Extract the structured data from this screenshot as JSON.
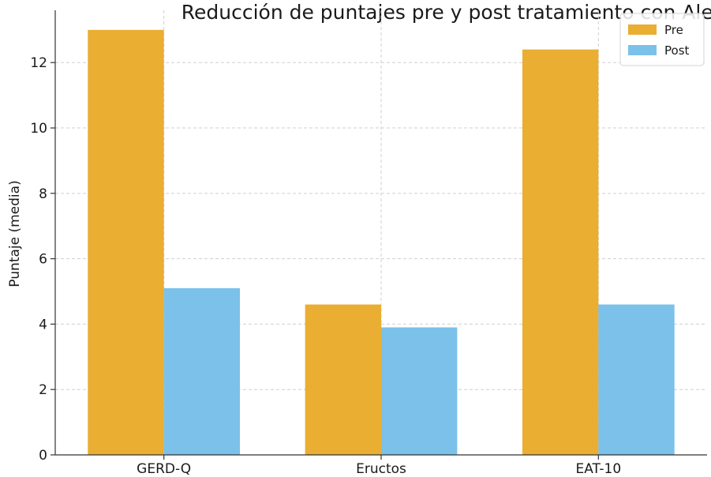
{
  "chart_data": {
    "type": "bar",
    "title": "Reducción de puntajes pre y post tratamiento con Alestam",
    "xlabel": "",
    "ylabel": "Puntaje (media)",
    "categories": [
      "GERD-Q",
      "Eructos",
      "EAT-10"
    ],
    "series": [
      {
        "name": "Pre",
        "values": [
          13.0,
          4.6,
          12.4
        ],
        "color": "#E9AE32"
      },
      {
        "name": "Post",
        "values": [
          5.1,
          3.9,
          4.6
        ],
        "color": "#7BC1EA"
      }
    ],
    "ylim": [
      0,
      13.6
    ],
    "yticks": [
      0,
      2,
      4,
      6,
      8,
      10,
      12
    ],
    "grid": true,
    "legend": "top-right"
  }
}
